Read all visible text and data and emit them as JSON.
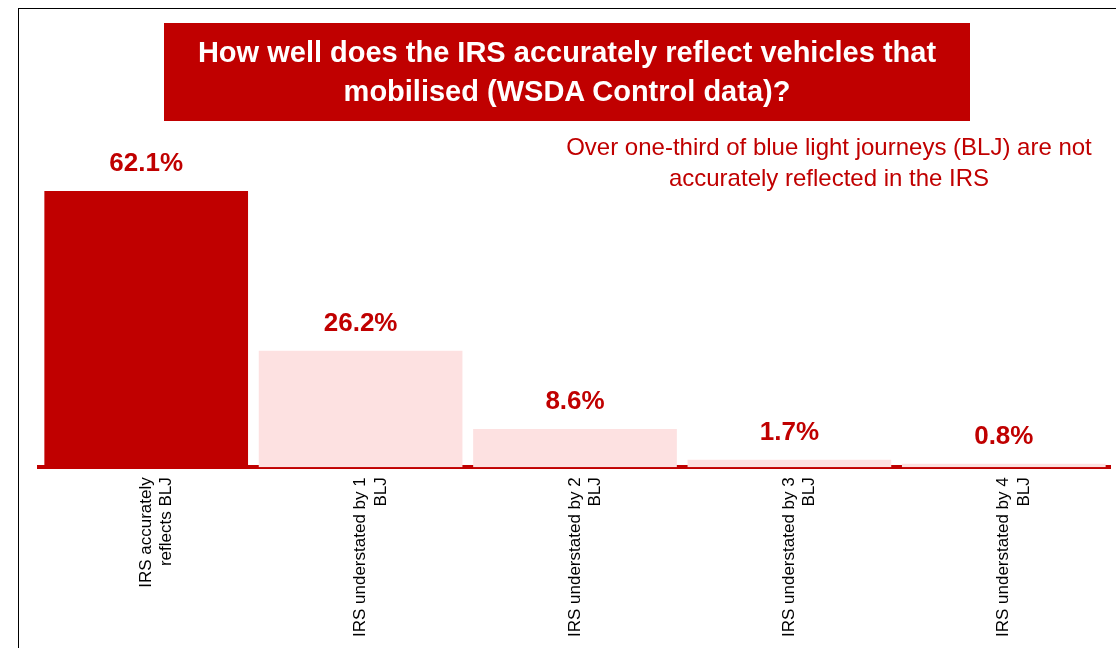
{
  "chart_data": {
    "type": "bar",
    "title": "How well does the IRS accurately reflect vehicles that mobilised (WSDA Control data)?",
    "categories": [
      "IRS accurately reflects BLJ",
      "IRS understated by 1 BLJ",
      "IRS understated by 2 BLJ",
      "IRS understated by 3 BLJ",
      "IRS understated by 4 BLJ"
    ],
    "values": [
      62.1,
      26.2,
      8.6,
      1.7,
      0.8
    ],
    "colors": [
      "#c00000",
      "#fde1e1",
      "#fde1e1",
      "#fde1e1",
      "#fde1e1"
    ],
    "value_labels": [
      "62.1%",
      "26.2%",
      "8.6%",
      "1.7%",
      "0.8%"
    ],
    "annotations": [
      "Over one-third of blue light journeys (BLJ) are not accurately reflected in the IRS"
    ],
    "grid": false,
    "legend": false,
    "tick_labels": "x"
  }
}
